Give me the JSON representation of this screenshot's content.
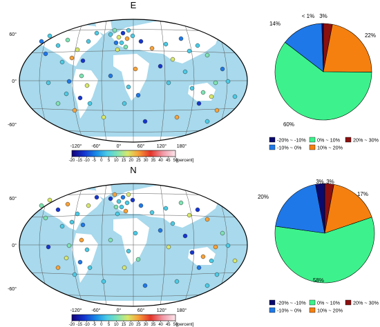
{
  "panels": [
    {
      "title": "E",
      "map": {
        "lat_labels": [
          "60°",
          "0°",
          "-60°"
        ],
        "lon_labels": [
          "-120°",
          "-60°",
          "0°",
          "60°",
          "120°",
          "180°"
        ]
      },
      "colorbar": {
        "ticks": [
          "-20",
          "-15",
          "-10",
          "-5",
          "0",
          "5",
          "10",
          "15",
          "20",
          "25",
          "30",
          "35",
          "40",
          "45",
          "50"
        ],
        "unit": "[percent]"
      },
      "pie_labels": [
        "< 1%",
        "3%",
        "14%",
        "60%",
        "22%"
      ]
    },
    {
      "title": "N",
      "map": {
        "lat_labels": [
          "60°",
          "0°",
          "-60°"
        ],
        "lon_labels": [
          "-120°",
          "-60°",
          "0°",
          "60°",
          "120°",
          "180°"
        ]
      },
      "colorbar": {
        "ticks": [
          "-20",
          "-15",
          "-10",
          "-5",
          "0",
          "5",
          "10",
          "15",
          "20",
          "25",
          "30",
          "35",
          "40",
          "45",
          "50"
        ],
        "unit": "[percent]"
      },
      "pie_labels": [
        "3%",
        "3%",
        "20%",
        "58%",
        "17%"
      ]
    }
  ],
  "legend": [
    {
      "label": "-20% ~ -10%",
      "color": "#0a0a6e"
    },
    {
      "label": "0% ~ 10%",
      "color": "#3df28c"
    },
    {
      "label": "20% ~ 30%",
      "color": "#8b1010"
    },
    {
      "label": "-10% ~ 0%",
      "color": "#1f78e8"
    },
    {
      "label": "10% ~ 20%",
      "color": "#f58010"
    }
  ],
  "colors": {
    "ocean": "#a8d9ec",
    "land": "#ffffff",
    "grid": "#555555"
  },
  "chart_data": [
    {
      "type": "pie",
      "title": "E",
      "labels": [
        "-20% ~ -10%",
        "-10% ~ 0%",
        "0% ~ 10%",
        "10% ~ 20%",
        "20% ~ 30%"
      ],
      "values": [
        0.5,
        14,
        60,
        22,
        3
      ],
      "colors": [
        "#0a0a6e",
        "#1f78e8",
        "#3df28c",
        "#f58010",
        "#8b1010"
      ]
    },
    {
      "type": "pie",
      "title": "N",
      "labels": [
        "-20% ~ -10%",
        "-10% ~ 0%",
        "0% ~ 10%",
        "10% ~ 20%",
        "20% ~ 30%"
      ],
      "values": [
        3,
        20,
        58,
        17,
        3
      ],
      "colors": [
        "#0a0a6e",
        "#1f78e8",
        "#3df28c",
        "#f58010",
        "#8b1010"
      ]
    }
  ]
}
